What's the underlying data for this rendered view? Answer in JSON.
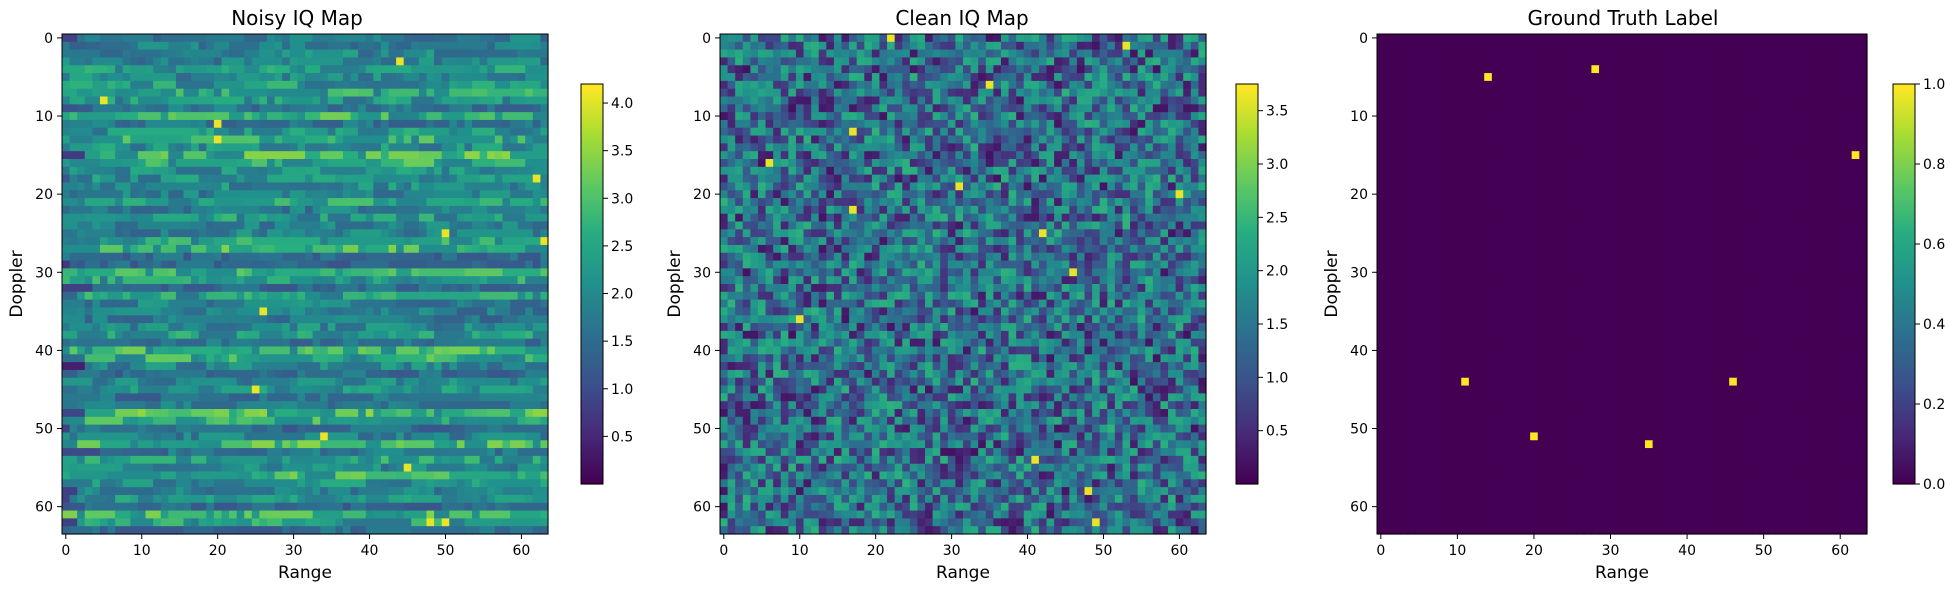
{
  "chart_data": [
    {
      "type": "heatmap",
      "title": "Noisy IQ Map",
      "xlabel": "Range",
      "ylabel": "Doppler",
      "grid_size": [
        64,
        64
      ],
      "xlim": [
        -0.5,
        63.5
      ],
      "ylim": [
        63.5,
        -0.5
      ],
      "xticks": [
        0,
        10,
        20,
        30,
        40,
        50,
        60
      ],
      "yticks": [
        0,
        10,
        20,
        30,
        40,
        50,
        60
      ],
      "colormap": "viridis",
      "color_range": [
        0.0,
        4.2
      ],
      "colorbar_ticks": [
        "0.5",
        "1.0",
        "1.5",
        "2.0",
        "2.5",
        "3.0",
        "3.5",
        "4.0"
      ],
      "pattern": "horizontal-streaks",
      "noise_seed": 11,
      "bright_cells": [
        [
          3,
          44
        ],
        [
          8,
          5
        ],
        [
          11,
          20
        ],
        [
          13,
          20
        ],
        [
          18,
          62
        ],
        [
          25,
          50
        ],
        [
          26,
          63
        ],
        [
          35,
          26
        ],
        [
          45,
          25
        ],
        [
          51,
          34
        ],
        [
          55,
          45
        ],
        [
          62,
          48
        ],
        [
          62,
          50
        ]
      ]
    },
    {
      "type": "heatmap",
      "title": "Clean IQ Map",
      "xlabel": "Range",
      "ylabel": "Doppler",
      "grid_size": [
        64,
        64
      ],
      "xlim": [
        -0.5,
        63.5
      ],
      "ylim": [
        63.5,
        -0.5
      ],
      "xticks": [
        0,
        10,
        20,
        30,
        40,
        50,
        60
      ],
      "yticks": [
        0,
        10,
        20,
        30,
        40,
        50,
        60
      ],
      "colormap": "viridis",
      "color_range": [
        0.0,
        3.75
      ],
      "colorbar_ticks": [
        "0.5",
        "1.0",
        "1.5",
        "2.0",
        "2.5",
        "3.0",
        "3.5"
      ],
      "pattern": "random-speckle",
      "noise_seed": 29,
      "bright_cells": [
        [
          0,
          22
        ],
        [
          1,
          53
        ],
        [
          6,
          35
        ],
        [
          12,
          17
        ],
        [
          16,
          6
        ],
        [
          19,
          31
        ],
        [
          20,
          60
        ],
        [
          22,
          17
        ],
        [
          25,
          42
        ],
        [
          30,
          46
        ],
        [
          36,
          10
        ],
        [
          54,
          41
        ],
        [
          58,
          48
        ],
        [
          62,
          49
        ]
      ]
    },
    {
      "type": "heatmap",
      "title": "Ground Truth Label",
      "xlabel": "Range",
      "ylabel": "Doppler",
      "grid_size": [
        64,
        64
      ],
      "xlim": [
        -0.5,
        63.5
      ],
      "ylim": [
        63.5,
        -0.5
      ],
      "xticks": [
        0,
        10,
        20,
        30,
        40,
        50,
        60
      ],
      "yticks": [
        0,
        10,
        20,
        30,
        40,
        50,
        60
      ],
      "colormap": "viridis",
      "color_range": [
        0.0,
        1.0
      ],
      "colorbar_ticks": [
        "0.0",
        "0.2",
        "0.4",
        "0.6",
        "0.8",
        "1.0"
      ],
      "pattern": "binary",
      "background_value": 0,
      "target_value": 1,
      "targets": [
        [
          5,
          14
        ],
        [
          4,
          28
        ],
        [
          15,
          62
        ],
        [
          44,
          11
        ],
        [
          44,
          46
        ],
        [
          51,
          20
        ],
        [
          52,
          35
        ]
      ]
    }
  ]
}
